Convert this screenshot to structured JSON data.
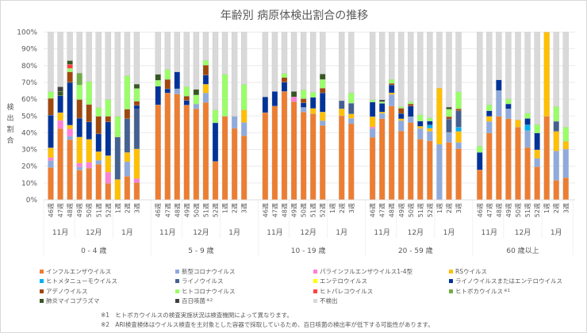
{
  "chart_data": {
    "type": "bar",
    "stacked": true,
    "title": "年齢別 病原体検出割合の推移",
    "ylabel": "検出割合",
    "ylim": [
      0,
      100
    ],
    "y_ticks": [
      "0%",
      "10%",
      "20%",
      "30%",
      "40%",
      "50%",
      "60%",
      "70%",
      "80%",
      "90%",
      "100%"
    ],
    "grid": true,
    "legend_position": "bottom",
    "weeks": [
      "46週",
      "47週",
      "48週",
      "49週",
      "50週",
      "51週",
      "52週",
      "1週",
      "2週",
      "3週"
    ],
    "months": [
      {
        "label": "11月",
        "start": 0,
        "end": 2
      },
      {
        "label": "12月",
        "start": 3,
        "end": 6
      },
      {
        "label": "1月",
        "start": 7,
        "end": 9
      }
    ],
    "series": [
      {
        "name": "インフルエンザウイルス",
        "color": "#ED7D31"
      },
      {
        "name": "新型コロナウイルス",
        "color": "#8FAADC"
      },
      {
        "name": "パラインフルエンザウイルス1-4型",
        "color": "#FF7FD6"
      },
      {
        "name": "RSウイルス",
        "color": "#FFC000"
      },
      {
        "name": "ヒトメタニューモウイルス",
        "color": "#00B0F0"
      },
      {
        "name": "ライノウイルス",
        "color": "#44618F"
      },
      {
        "name": "エンテロウイルス",
        "color": "#FFFF00"
      },
      {
        "name": "ライノウイルスまたはエンテロウイルス",
        "color": "#003399"
      },
      {
        "name": "アデノウイルス",
        "color": "#9E480E"
      },
      {
        "name": "ヒトコロナウイルス",
        "color": "#99FF66"
      },
      {
        "name": "ヒトパレコウイルス",
        "color": "#FF4040"
      },
      {
        "name": "ヒトボカウイルス",
        "color": "#70AD47",
        "note": "※1"
      },
      {
        "name": "肺炎マイコプラズマ",
        "color": "#375623"
      },
      {
        "name": "百日咳菌",
        "color": "#404040",
        "note": "※2"
      },
      {
        "name": "不検出",
        "color": "#D9D9D9"
      }
    ],
    "groups": [
      {
        "label": "0 - 4 歳",
        "bars": [
          [
            19.2,
            4.1,
            1.9,
            5.8,
            0,
            0,
            0,
            19.5,
            10,
            4,
            0,
            0,
            0,
            0,
            35.5
          ],
          [
            42.4,
            0,
            4.9,
            4.7,
            0,
            0,
            0,
            10.1,
            0,
            0,
            0,
            0,
            2.6,
            2.7,
            32.6
          ],
          [
            35.8,
            2.1,
            4.4,
            2.2,
            0,
            0,
            0,
            25.5,
            6.3,
            2.1,
            2.4,
            0,
            2.2,
            0,
            17
          ],
          [
            17.7,
            1.9,
            2.3,
            15.5,
            0,
            0,
            0,
            11.3,
            11.1,
            8.7,
            0,
            7.1,
            0,
            0,
            24.4
          ],
          [
            18.9,
            0,
            3.5,
            13.7,
            0,
            0,
            0,
            10.3,
            10.4,
            13.7,
            0,
            0,
            0,
            0,
            29.5
          ],
          [
            21.1,
            2.4,
            0,
            5.2,
            0,
            0,
            0,
            10.6,
            10.5,
            5.2,
            0,
            0,
            0,
            0,
            45
          ],
          [
            9.8,
            0,
            6.6,
            9.9,
            0,
            0,
            0,
            20.1,
            3.4,
            10,
            0,
            0,
            0,
            0,
            40.2
          ],
          [
            0,
            0,
            0,
            12.1,
            0,
            25.3,
            0,
            0,
            0,
            12.4,
            0,
            0,
            0,
            0,
            50.2
          ],
          [
            14,
            8.7,
            0,
            5.5,
            0,
            20.1,
            0,
            0,
            5.7,
            20,
            0,
            0,
            0,
            0,
            26
          ],
          [
            10.3,
            0,
            2.3,
            17.7,
            0,
            23.7,
            0,
            2.3,
            2.4,
            7.7,
            0,
            0,
            2.6,
            0,
            31
          ]
        ]
      },
      {
        "label": "5 - 9 歳",
        "bars": [
          [
            56.6,
            0,
            0,
            0,
            0,
            0,
            0,
            11.1,
            0,
            3.6,
            0,
            0,
            3.5,
            0,
            25.2
          ],
          [
            63.7,
            0,
            0,
            0,
            0,
            0,
            0,
            2.5,
            5.6,
            5.8,
            0,
            0,
            0,
            0,
            22.4
          ],
          [
            63.1,
            3.1,
            0,
            0,
            0,
            0,
            0,
            10.1,
            0,
            0,
            0,
            0,
            0,
            0,
            23.7
          ],
          [
            56.5,
            0,
            0,
            0,
            0,
            0,
            0,
            2.8,
            2.5,
            5.6,
            0,
            0,
            0,
            0,
            32.6
          ],
          [
            54.3,
            2.8,
            0,
            0,
            0,
            0,
            0,
            0,
            0,
            5.4,
            0,
            0,
            3.3,
            0,
            34.2
          ],
          [
            58,
            5.7,
            0,
            5.2,
            0,
            0,
            0,
            5.5,
            5.9,
            2.8,
            0,
            0,
            0,
            0,
            16.9
          ],
          [
            22.9,
            0,
            0,
            0,
            0,
            0,
            0,
            23,
            0,
            7.7,
            0,
            0,
            0,
            0,
            46.4
          ],
          [
            49.8,
            0,
            0,
            0,
            0,
            0,
            0,
            0,
            0,
            25,
            0,
            0,
            0,
            0,
            25.2
          ],
          [
            42.6,
            7.2,
            0,
            0,
            0,
            0,
            0,
            0,
            0,
            0,
            0,
            0,
            0,
            0,
            50.2
          ],
          [
            38.2,
            7.9,
            0,
            7.5,
            0,
            0,
            0,
            0,
            0,
            15.2,
            0,
            0,
            0,
            0,
            31.2
          ]
        ]
      },
      {
        "label": "10 - 19 歳",
        "bars": [
          [
            52,
            0,
            0,
            0,
            0,
            0,
            0,
            9.4,
            0,
            0,
            0,
            0,
            0,
            0,
            38.6
          ],
          [
            55.9,
            0,
            0,
            0,
            0,
            0,
            0,
            8.7,
            0,
            0,
            0,
            0,
            0,
            0,
            35.4
          ],
          [
            64.6,
            0,
            0,
            0,
            0,
            0,
            0,
            5.5,
            2.8,
            2.4,
            0,
            0,
            0,
            0,
            24.7
          ],
          [
            58.6,
            0,
            2.8,
            0,
            0,
            0,
            0,
            0,
            0,
            0,
            0,
            0,
            3.2,
            0,
            35.4
          ],
          [
            52.4,
            2.7,
            0,
            0,
            0,
            0,
            0,
            2.7,
            2.5,
            5.2,
            0,
            0,
            0,
            0,
            34.5
          ],
          [
            51.3,
            0,
            0,
            3.2,
            0,
            0,
            0,
            6.6,
            0,
            3,
            0,
            0,
            0,
            0,
            35.9
          ],
          [
            44.3,
            2.8,
            0,
            5.3,
            0,
            0,
            0,
            11.4,
            2.8,
            5.2,
            0,
            0,
            3.2,
            0,
            25
          ],
          [
            0,
            0,
            0,
            0,
            0,
            0,
            0,
            0,
            0,
            0,
            0,
            0,
            0,
            0,
            0
          ],
          [
            50.1,
            0,
            0,
            4.2,
            0,
            4.8,
            0,
            0,
            0,
            0,
            0,
            0,
            0,
            0,
            40.9
          ],
          [
            45.4,
            3.1,
            0,
            2.7,
            0,
            6.4,
            0,
            0,
            0,
            6.2,
            0,
            0,
            0,
            0,
            36.2
          ]
        ]
      },
      {
        "label": "20 - 59 歳",
        "bars": [
          [
            37.3,
            5.2,
            1,
            6.1,
            0,
            0,
            0,
            8.7,
            0,
            1.3,
            0,
            0,
            0,
            0,
            40.4
          ],
          [
            48.3,
            3.2,
            0,
            0.9,
            0,
            0,
            0,
            5.1,
            0,
            1,
            0,
            0,
            0,
            1.1,
            40.4
          ],
          [
            55.9,
            6.8,
            0,
            1.1,
            0,
            0,
            0,
            4.7,
            0.9,
            2.4,
            0,
            0,
            0,
            0,
            28.2
          ],
          [
            41.1,
            6.1,
            0,
            1.1,
            0,
            0,
            0,
            3.2,
            3.1,
            1,
            0,
            0,
            0,
            0,
            44.4
          ],
          [
            46.1,
            3.5,
            0,
            0,
            0,
            0,
            0,
            6.3,
            1.3,
            1.3,
            0,
            0,
            0,
            0,
            41.5
          ],
          [
            36.2,
            6.3,
            0,
            1.3,
            0,
            0,
            0,
            3.1,
            0,
            3.8,
            0,
            0,
            0,
            0,
            49.3
          ],
          [
            35.1,
            5.7,
            0,
            1.9,
            1.9,
            0,
            0,
            2.3,
            0,
            2,
            0,
            0,
            0,
            0,
            51.1
          ],
          [
            0,
            33.1,
            0,
            33.5,
            0,
            0,
            0,
            0,
            0,
            0,
            0,
            0,
            0,
            0,
            33.4
          ],
          [
            34.3,
            5.9,
            0,
            0,
            0,
            8,
            0,
            0,
            1.4,
            4.4,
            0,
            0,
            1.3,
            0,
            44.7
          ],
          [
            30.5,
            3.7,
            0,
            6.6,
            2.5,
            9.8,
            0,
            0,
            1.1,
            10.2,
            0,
            0,
            0,
            0,
            35.6
          ]
        ]
      },
      {
        "label": "60 歳以上",
        "bars": [
          [
            17.8,
            0,
            0,
            0,
            0,
            0,
            0,
            10.5,
            0,
            3.7,
            0,
            0,
            0,
            0,
            68
          ],
          [
            39.8,
            6.8,
            0,
            3.2,
            0,
            0,
            0,
            3.3,
            0,
            3.6,
            0,
            0,
            0,
            0,
            43.3
          ],
          [
            49.8,
            15.4,
            0,
            0,
            0,
            0,
            0,
            6.3,
            0,
            0,
            0,
            0,
            0,
            0,
            28.5
          ],
          [
            48.3,
            5.9,
            0,
            0,
            0,
            0,
            0,
            3,
            0,
            3,
            0,
            0,
            0,
            0,
            39.8
          ],
          [
            43.3,
            0,
            0,
            4.3,
            0,
            0,
            0,
            0,
            0,
            0,
            0,
            0,
            0,
            0,
            52.4
          ],
          [
            31.2,
            10.1,
            0,
            0,
            3.4,
            0,
            0,
            3.8,
            0,
            3.2,
            0,
            0,
            0,
            0,
            48.3
          ],
          [
            19.7,
            5,
            0,
            5.1,
            0,
            0,
            0,
            10,
            0,
            5.1,
            0,
            0,
            0,
            0,
            55.1
          ],
          [
            49.8,
            0,
            0,
            50.2,
            0,
            0,
            0,
            0,
            0,
            0,
            0,
            0,
            0,
            0,
            0
          ],
          [
            11.6,
            17.5,
            0,
            11.7,
            0,
            6,
            0,
            0,
            0,
            8.8,
            0,
            0,
            0,
            0,
            44.4
          ],
          [
            13.2,
            17,
            0,
            4.7,
            0,
            0,
            0,
            0,
            0,
            8.5,
            0,
            0,
            0,
            0,
            56.6
          ]
        ]
      }
    ]
  },
  "footnotes": {
    "n1_mark": "※1",
    "n1_text": "ヒトボカウイルスの検査実施状況は検査機関によって異なります。",
    "n2_mark": "※2",
    "n2_text": "ARI検査検体はウイルス検査を主対象とした容器で採取しているため、百日咳菌の検出率が低下する可能性があります。"
  }
}
